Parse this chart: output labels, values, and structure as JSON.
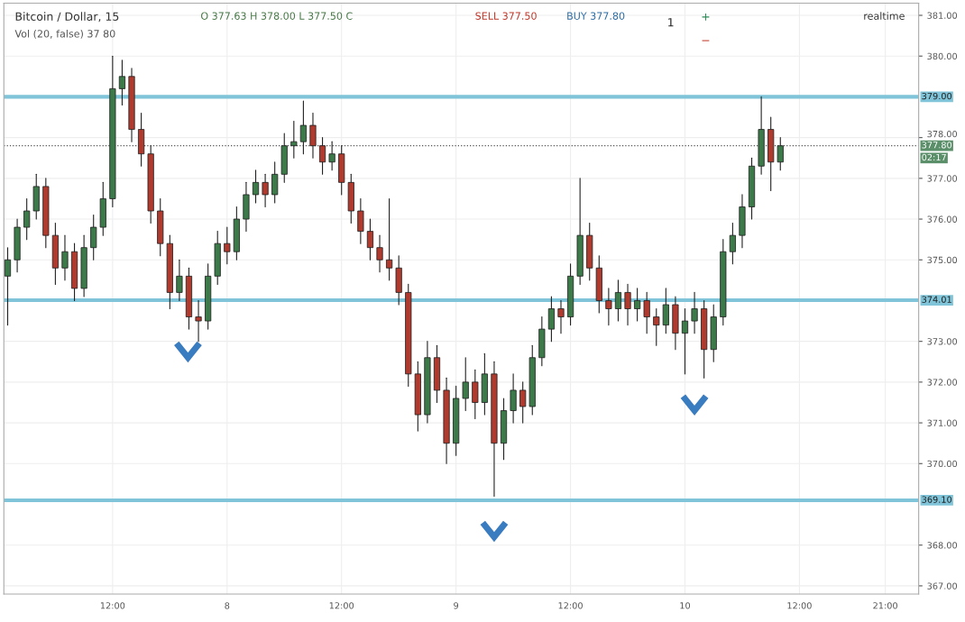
{
  "chart_data": {
    "type": "candlestick",
    "title": "Bitcoin / Dollar, 15",
    "annotations": [
      "O 377.63 H 378.00 L 377.50 C",
      "Vol (20, false) 37 80",
      "SELL 377.50",
      "BUY 377.80",
      "1",
      "+",
      "−",
      "realtime",
      "02:17"
    ],
    "categories": [
      null,
      null,
      null,
      null,
      null,
      null,
      null,
      null,
      null,
      null,
      null,
      "12:00",
      null,
      null,
      null,
      null,
      null,
      null,
      null,
      null,
      null,
      null,
      null,
      "8",
      null,
      null,
      null,
      null,
      null,
      null,
      null,
      null,
      null,
      null,
      null,
      "12:00",
      null,
      null,
      null,
      null,
      null,
      null,
      null,
      null,
      null,
      null,
      null,
      "9",
      null,
      null,
      null,
      null,
      null,
      null,
      null,
      null,
      null,
      null,
      null,
      "12:00",
      null,
      null,
      null,
      null,
      null,
      null,
      null,
      null,
      null,
      null,
      null,
      "10",
      null,
      null,
      null,
      null,
      null,
      null,
      null,
      null,
      null,
      null,
      null,
      "12:00",
      null,
      null,
      null,
      null,
      null,
      null,
      null,
      null,
      "21:00",
      null,
      null,
      null
    ],
    "ohlc": [
      [
        374.6,
        375.3,
        373.4,
        375.0
      ],
      [
        375.0,
        376.0,
        374.7,
        375.8
      ],
      [
        375.8,
        376.5,
        375.5,
        376.2
      ],
      [
        376.2,
        377.1,
        376.0,
        376.8
      ],
      [
        376.8,
        377.0,
        375.3,
        375.6
      ],
      [
        375.6,
        375.9,
        374.4,
        374.8
      ],
      [
        374.8,
        375.6,
        374.5,
        375.2
      ],
      [
        375.2,
        375.4,
        374.0,
        374.3
      ],
      [
        374.3,
        375.6,
        374.1,
        375.3
      ],
      [
        375.3,
        376.1,
        375.0,
        375.8
      ],
      [
        375.8,
        376.9,
        375.6,
        376.5
      ],
      [
        376.5,
        380.0,
        376.3,
        379.2
      ],
      [
        379.2,
        379.9,
        378.8,
        379.5
      ],
      [
        379.5,
        379.7,
        377.9,
        378.2
      ],
      [
        378.2,
        378.6,
        377.3,
        377.6
      ],
      [
        377.6,
        377.8,
        375.9,
        376.2
      ],
      [
        376.2,
        376.5,
        375.1,
        375.4
      ],
      [
        375.4,
        375.6,
        373.8,
        374.2
      ],
      [
        374.2,
        375.0,
        374.0,
        374.6
      ],
      [
        374.6,
        374.8,
        373.3,
        373.6
      ],
      [
        373.6,
        374.0,
        373.0,
        373.5
      ],
      [
        373.5,
        374.9,
        373.3,
        374.6
      ],
      [
        374.6,
        375.7,
        374.4,
        375.4
      ],
      [
        375.4,
        375.8,
        374.9,
        375.2
      ],
      [
        375.2,
        376.3,
        375.0,
        376.0
      ],
      [
        376.0,
        376.9,
        375.7,
        376.6
      ],
      [
        376.6,
        377.2,
        376.4,
        376.9
      ],
      [
        376.9,
        377.1,
        376.3,
        376.6
      ],
      [
        376.6,
        377.4,
        376.4,
        377.1
      ],
      [
        377.1,
        378.1,
        376.9,
        377.8
      ],
      [
        377.8,
        378.4,
        377.5,
        377.9
      ],
      [
        377.9,
        378.9,
        377.6,
        378.3
      ],
      [
        378.3,
        378.6,
        377.5,
        377.8
      ],
      [
        377.8,
        378.0,
        377.1,
        377.4
      ],
      [
        377.4,
        377.9,
        377.2,
        377.6
      ],
      [
        377.6,
        377.8,
        376.6,
        376.9
      ],
      [
        376.9,
        377.1,
        375.9,
        376.2
      ],
      [
        376.2,
        376.5,
        375.4,
        375.7
      ],
      [
        375.7,
        376.0,
        375.0,
        375.3
      ],
      [
        375.3,
        375.6,
        374.7,
        375.0
      ],
      [
        375.0,
        376.5,
        374.5,
        374.8
      ],
      [
        374.8,
        375.1,
        373.9,
        374.2
      ],
      [
        374.2,
        374.4,
        371.9,
        372.2
      ],
      [
        372.2,
        372.5,
        370.8,
        371.2
      ],
      [
        371.2,
        373.0,
        371.0,
        372.6
      ],
      [
        372.6,
        372.9,
        371.5,
        371.8
      ],
      [
        371.8,
        372.1,
        370.0,
        370.5
      ],
      [
        370.5,
        371.9,
        370.2,
        371.6
      ],
      [
        371.6,
        372.6,
        371.3,
        372.0
      ],
      [
        372.0,
        372.3,
        371.1,
        371.5
      ],
      [
        371.5,
        372.7,
        371.2,
        372.2
      ],
      [
        372.2,
        372.5,
        369.2,
        370.5
      ],
      [
        370.5,
        371.6,
        370.1,
        371.3
      ],
      [
        371.3,
        372.2,
        371.0,
        371.8
      ],
      [
        371.8,
        372.0,
        371.0,
        371.4
      ],
      [
        371.4,
        372.9,
        371.2,
        372.6
      ],
      [
        372.6,
        373.6,
        372.4,
        373.3
      ],
      [
        373.3,
        374.1,
        373.0,
        373.8
      ],
      [
        373.8,
        374.0,
        373.2,
        373.6
      ],
      [
        373.6,
        374.9,
        373.4,
        374.6
      ],
      [
        374.6,
        377.0,
        374.4,
        375.6
      ],
      [
        375.6,
        375.9,
        374.5,
        374.8
      ],
      [
        374.8,
        375.1,
        373.7,
        374.0
      ],
      [
        374.0,
        374.3,
        373.4,
        373.8
      ],
      [
        373.8,
        374.5,
        373.5,
        374.2
      ],
      [
        374.2,
        374.4,
        373.4,
        373.8
      ],
      [
        373.8,
        374.3,
        373.5,
        374.0
      ],
      [
        374.0,
        374.2,
        373.2,
        373.6
      ],
      [
        373.6,
        373.8,
        372.9,
        373.4
      ],
      [
        373.4,
        374.3,
        373.2,
        373.9
      ],
      [
        373.9,
        374.1,
        372.8,
        373.2
      ],
      [
        373.2,
        373.8,
        372.2,
        373.5
      ],
      [
        373.5,
        374.2,
        373.2,
        373.8
      ],
      [
        373.8,
        374.0,
        372.1,
        372.8
      ],
      [
        372.8,
        373.9,
        372.5,
        373.6
      ],
      [
        373.6,
        375.5,
        373.4,
        375.2
      ],
      [
        375.2,
        375.9,
        374.9,
        375.6
      ],
      [
        375.6,
        376.6,
        375.3,
        376.3
      ],
      [
        376.3,
        377.5,
        376.0,
        377.3
      ],
      [
        377.3,
        379.0,
        377.1,
        378.2
      ],
      [
        378.2,
        378.5,
        376.7,
        377.4
      ],
      [
        377.4,
        378.0,
        377.2,
        377.8
      ],
      null,
      null,
      null,
      null,
      null,
      null,
      null,
      null,
      null,
      null,
      null,
      null,
      null,
      null
    ],
    "colors": [
      "#3c7a4a",
      "#3c7a4a",
      "#3c7a4a",
      "#3c7a4a",
      "#b03a2e",
      "#b03a2e",
      "#3c7a4a",
      "#b03a2e",
      "#3c7a4a",
      "#3c7a4a",
      "#3c7a4a",
      "#3c7a4a",
      "#3c7a4a",
      "#b03a2e",
      "#b03a2e",
      "#b03a2e",
      "#b03a2e",
      "#b03a2e",
      "#3c7a4a",
      "#b03a2e",
      "#b03a2e",
      "#3c7a4a",
      "#3c7a4a",
      "#b03a2e",
      "#3c7a4a",
      "#3c7a4a",
      "#3c7a4a",
      "#b03a2e",
      "#3c7a4a",
      "#3c7a4a",
      "#3c7a4a",
      "#3c7a4a",
      "#b03a2e",
      "#b03a2e",
      "#3c7a4a",
      "#b03a2e",
      "#b03a2e",
      "#b03a2e",
      "#b03a2e",
      "#b03a2e",
      "#b03a2e",
      "#b03a2e",
      "#b03a2e",
      "#b03a2e",
      "#3c7a4a",
      "#b03a2e",
      "#b03a2e",
      "#3c7a4a",
      "#3c7a4a",
      "#b03a2e",
      "#3c7a4a",
      "#b03a2e",
      "#3c7a4a",
      "#3c7a4a",
      "#b03a2e",
      "#3c7a4a",
      "#3c7a4a",
      "#3c7a4a",
      "#b03a2e",
      "#3c7a4a",
      "#3c7a4a",
      "#b03a2e",
      "#b03a2e",
      "#b03a2e",
      "#3c7a4a",
      "#b03a2e",
      "#3c7a4a",
      "#b03a2e",
      "#b03a2e",
      "#3c7a4a",
      "#b03a2e",
      "#3c7a4a",
      "#3c7a4a",
      "#b03a2e",
      "#3c7a4a",
      "#3c7a4a",
      "#3c7a4a",
      "#3c7a4a",
      "#3c7a4a",
      "#3c7a4a",
      "#b03a2e",
      "#3c7a4a",
      null,
      null,
      null,
      null,
      null,
      null,
      null,
      null,
      null,
      null,
      null,
      null,
      null,
      null
    ],
    "ylim": [
      366.8,
      381.3
    ],
    "yticks": [
      {
        "value": 367,
        "label": "367.00"
      },
      {
        "value": 368,
        "label": "368.00"
      },
      {
        "value": 370,
        "label": "370.00"
      },
      {
        "value": 371,
        "label": "371.00"
      },
      {
        "value": 372,
        "label": "372.00"
      },
      {
        "value": 373,
        "label": "373.00"
      },
      {
        "value": 375,
        "label": "375.00"
      },
      {
        "value": 376,
        "label": "376.00"
      },
      {
        "value": 377,
        "label": "377.00"
      },
      {
        "value": 378,
        "label": "378.00"
      },
      {
        "value": 380,
        "label": "380.00"
      },
      {
        "value": 381,
        "label": "381.00"
      }
    ],
    "ref_lines": [
      {
        "axis": "y",
        "value": 379.0,
        "label": "379.00",
        "color": "#7fc4d8"
      },
      {
        "axis": "y",
        "value": 374.01,
        "label": "374.01",
        "color": "#7fc4d8"
      },
      {
        "axis": "y",
        "value": 369.1,
        "label": "369.10",
        "color": "#7fc4d8"
      },
      {
        "axis": "y",
        "value": 377.8,
        "label": "377.80",
        "color": "#555555",
        "line_style": "dotted"
      }
    ],
    "grid": true
  }
}
